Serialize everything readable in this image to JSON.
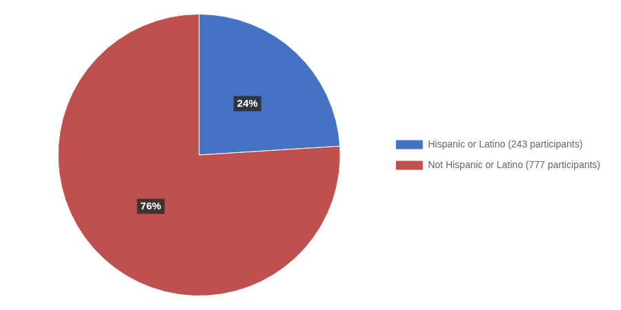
{
  "chart_data": {
    "type": "pie",
    "categories": [
      "Hispanic or Latino (243 participants)",
      "Not Hispanic or Latino (777 participants)"
    ],
    "values": [
      24,
      76
    ],
    "value_labels": [
      "24%",
      "76%"
    ],
    "colors": [
      "#4472C4",
      "#C0504D"
    ],
    "data_labels": true,
    "legend": "right"
  }
}
